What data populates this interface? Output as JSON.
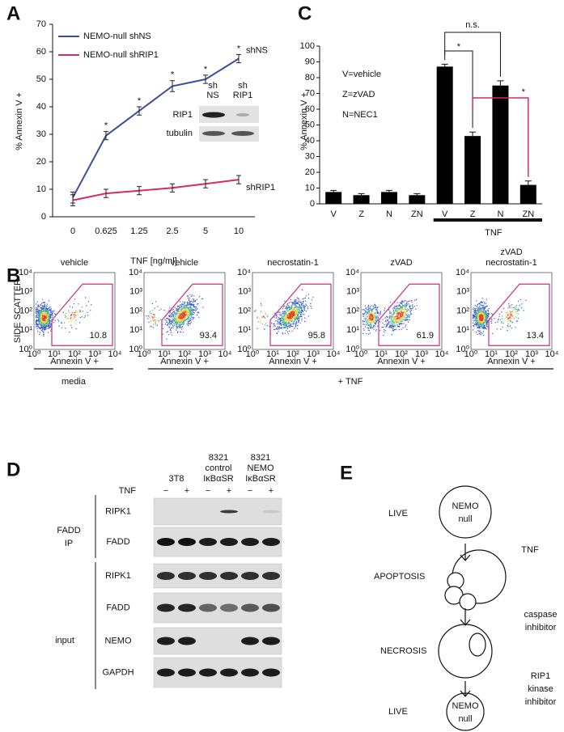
{
  "panel_labels": [
    "A",
    "B",
    "C",
    "D",
    "E"
  ],
  "chart_data": [
    {
      "type": "line",
      "x_label": "TNF [ng/ml]",
      "y_label": "% Annexin V +",
      "categories": [
        "0",
        "0.625",
        "1.25",
        "2.5",
        "5",
        "10"
      ],
      "ylim": [
        0,
        70
      ],
      "yticks": [
        0,
        10,
        20,
        30,
        40,
        50,
        60,
        70
      ],
      "series": [
        {
          "name": "NEMO-null shNS",
          "end_label": "shNS",
          "color": "#3a4f9c",
          "values": [
            7,
            29.5,
            38.5,
            47.5,
            50,
            57.5
          ],
          "errors": [
            2,
            1.5,
            1.5,
            2,
            1.5,
            1.5
          ]
        },
        {
          "name": "NEMO-null shRIP1",
          "end_label": "shRIP1",
          "color": "#d62a62",
          "values": [
            6,
            8.5,
            9.5,
            10.5,
            12,
            13.5
          ],
          "errors": [
            2,
            1.5,
            1.5,
            1.5,
            1.5,
            1.5
          ]
        }
      ],
      "significance": "*",
      "inset": {
        "columns": [
          [
            "sh",
            "NS"
          ],
          [
            "sh",
            "RIP1"
          ]
        ],
        "rows": [
          "RIP1",
          "tubulin"
        ]
      }
    },
    {
      "type": "bar",
      "y_label": "% Annexin V +",
      "categories": [
        "V",
        "Z",
        "N",
        "ZN",
        "V",
        "Z",
        "N",
        "ZN"
      ],
      "values": [
        7.5,
        5.5,
        7.5,
        5.5,
        87,
        43,
        75,
        12
      ],
      "errors": [
        1,
        1,
        1,
        1,
        1.5,
        2.5,
        3,
        2.5
      ],
      "color": "#000000",
      "ylim": [
        0,
        100
      ],
      "yticks": [
        0,
        10,
        20,
        30,
        40,
        50,
        60,
        70,
        80,
        90,
        100
      ],
      "legend_text": [
        "V=vehicle",
        "Z=zVAD",
        "N=NEC1"
      ],
      "group_label": "TNF",
      "annotations": {
        "ns": "n.s.",
        "star": "*"
      },
      "highlight_color": "#d62a62"
    }
  ],
  "flow": {
    "y_label": "SIDE SCATTER",
    "x_label": "Annexin V +",
    "ticks": [
      "10⁰",
      "10¹",
      "10²",
      "10³",
      "10⁴"
    ],
    "plots": [
      {
        "title": [
          "vehicle"
        ],
        "value": 10.8
      },
      {
        "title": [
          "vehicle"
        ],
        "value": 93.4
      },
      {
        "title": [
          "necrostatin-1"
        ],
        "value": 95.8
      },
      {
        "title": [
          "zVAD"
        ],
        "value": 61.9
      },
      {
        "title": [
          "zVAD",
          "necrostatin-1"
        ],
        "value": 13.4
      }
    ],
    "groups": [
      "media",
      "+ TNF"
    ]
  },
  "blot": {
    "columns": [
      [
        "3T8"
      ],
      [
        "8321",
        "control",
        "IκBαSR"
      ],
      [
        "8321",
        "NEMO",
        "IκBαSR"
      ]
    ],
    "treatment": "TNF",
    "signs": [
      "−",
      "+",
      "−",
      "+",
      "−",
      "+"
    ],
    "groups": [
      [
        "FADD",
        "IP"
      ],
      [
        "input"
      ]
    ],
    "rows": [
      "RIPK1",
      "FADD",
      "RIPK1",
      "FADD",
      "NEMO",
      "GAPDH"
    ]
  },
  "diagram": {
    "states": [
      "LIVE",
      "APOPTOSIS",
      "NECROSIS",
      "LIVE"
    ],
    "cell": [
      "NEMO",
      "null"
    ],
    "steps": [
      [
        "TNF"
      ],
      [
        "caspase",
        "inhibitor"
      ],
      [
        "RIP1",
        "kinase",
        "inhibitor"
      ]
    ]
  }
}
